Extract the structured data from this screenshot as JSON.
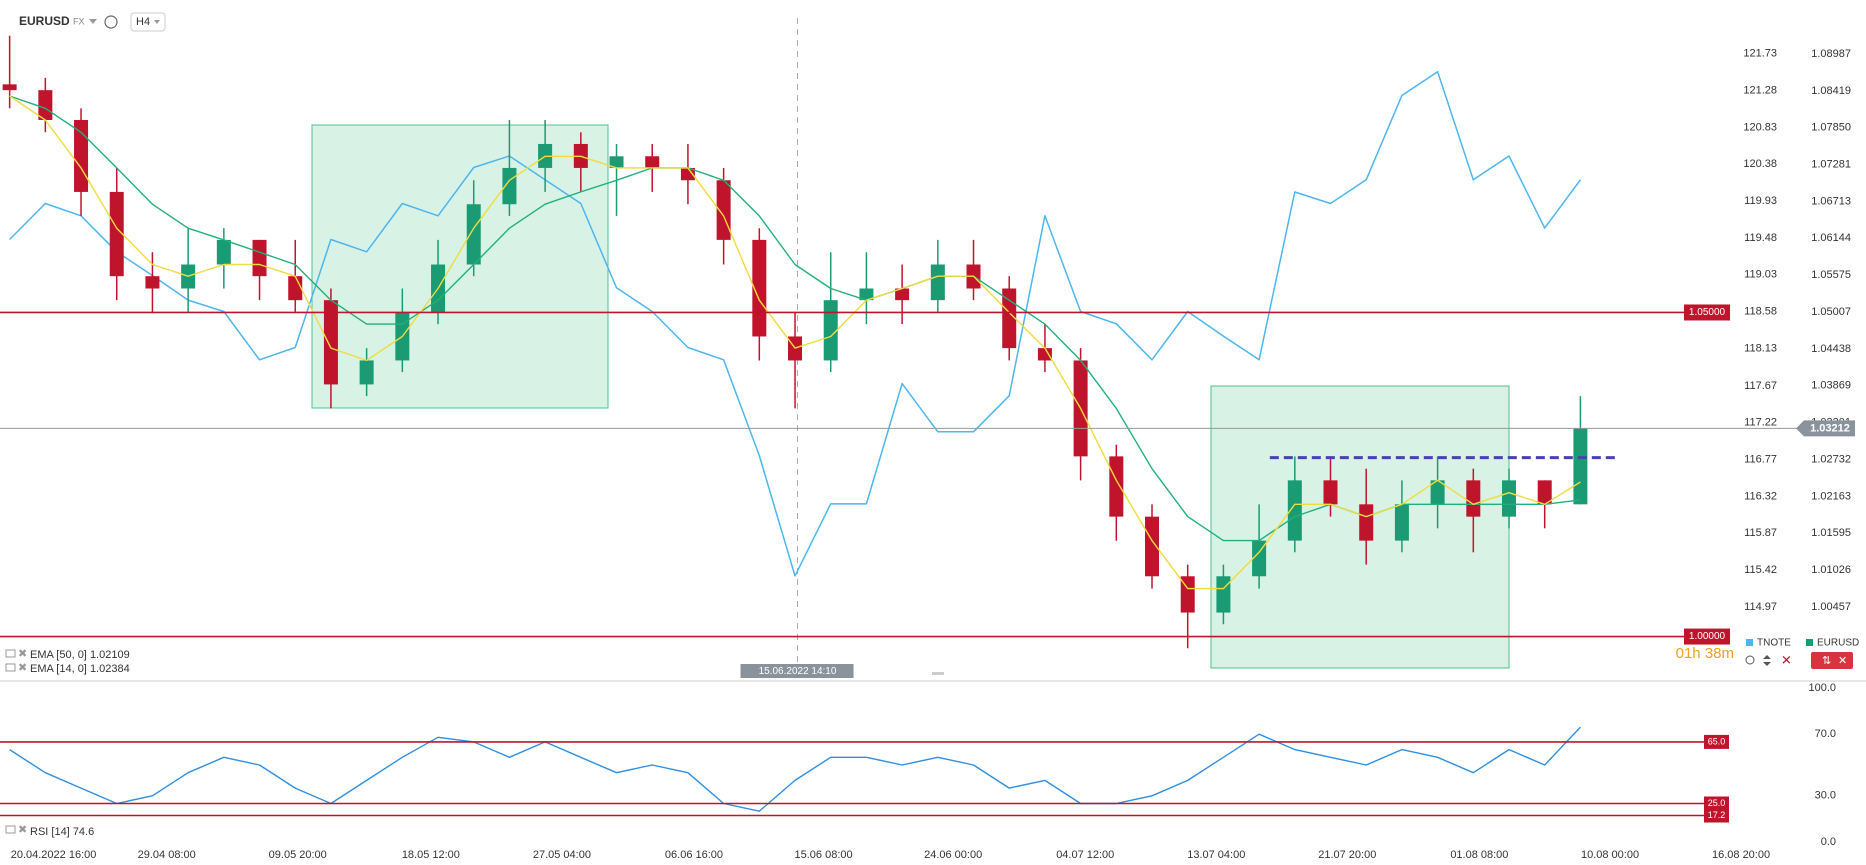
{
  "header": {
    "symbol": "EURUSD",
    "market": "FX",
    "interval": "H4"
  },
  "chart_data": [
    {
      "type": "candlestick",
      "name": "EURUSD",
      "up_color": "#1b9b73",
      "down_color": "#c0142d",
      "xlim": [
        -0.27,
        52
      ],
      "xticks": [
        {
          "value": 1.23,
          "label": "20.04.2022  16:00"
        },
        {
          "value": 4.4,
          "label": "29.04  08:00"
        },
        {
          "value": 8.07,
          "label": "09.05  20:00"
        },
        {
          "value": 11.8,
          "label": "18.05  12:00"
        },
        {
          "value": 15.47,
          "label": "27.05  04:00"
        },
        {
          "value": 19.17,
          "label": "06.06  16:00"
        },
        {
          "value": 22.8,
          "label": "15.06  08:00"
        },
        {
          "value": 26.43,
          "label": "24.06  00:00"
        },
        {
          "value": 30.13,
          "label": "04.07  12:00"
        },
        {
          "value": 33.8,
          "label": "13.07  04:00"
        },
        {
          "value": 37.47,
          "label": "21.07  20:00"
        },
        {
          "value": 41.17,
          "label": "01.08  08:00"
        },
        {
          "value": 44.83,
          "label": "10.08  00:00"
        },
        {
          "value": 48.5,
          "label": "16.08  20:00"
        }
      ],
      "ylim": [
        0.99345,
        1.09636
      ],
      "yticks": [
        1.08987,
        1.08419,
        {
          "value": 1.0785,
          "label": "1.07850"
        },
        1.07281,
        1.06713,
        1.06144,
        1.05575,
        1.05007,
        1.04438,
        1.03869,
        1.03301,
        1.02732,
        1.02163,
        1.01595,
        1.01026,
        1.00457
      ],
      "y2lim": [
        114.09,
        122.24
      ],
      "y2ticks": [
        121.73,
        121.28,
        120.83,
        120.38,
        119.93,
        119.48,
        119.03,
        118.58,
        118.13,
        117.67,
        117.22,
        116.77,
        116.32,
        115.87,
        115.42,
        114.97
      ],
      "open": [
        1.0852,
        1.0843,
        1.0797,
        1.0686,
        1.0556,
        1.0537,
        1.0574,
        1.0612,
        1.0556,
        1.0519,
        1.0389,
        1.0426,
        1.05,
        1.0574,
        1.0667,
        1.0723,
        1.076,
        1.0723,
        1.0741,
        1.0723,
        1.0704,
        1.0612,
        1.0463,
        1.0426,
        1.0519,
        1.0537,
        1.0519,
        1.0574,
        1.0537,
        1.0445,
        1.0426,
        1.0278,
        1.0185,
        1.0093,
        1.0037,
        1.0093,
        1.0148,
        1.0241,
        1.0204,
        1.0148,
        1.0204,
        1.0241,
        1.0185,
        1.0241,
        1.0204
      ],
      "high": [
        1.0927,
        1.0862,
        1.0815,
        1.0723,
        1.0593,
        1.063,
        1.063,
        1.0612,
        1.0612,
        1.0537,
        1.0445,
        1.0537,
        1.0612,
        1.0704,
        1.0797,
        1.0797,
        1.0778,
        1.076,
        1.076,
        1.076,
        1.0723,
        1.063,
        1.05,
        1.0593,
        1.0593,
        1.0574,
        1.0612,
        1.0612,
        1.0556,
        1.0482,
        1.0445,
        1.0296,
        1.0204,
        1.0111,
        1.0111,
        1.0204,
        1.0278,
        1.0278,
        1.0259,
        1.0241,
        1.0278,
        1.0259,
        1.0259,
        1.0241,
        1.0371
      ],
      "low": [
        1.0815,
        1.0778,
        1.0649,
        1.0519,
        1.05,
        1.05,
        1.0537,
        1.0519,
        1.05,
        1.0352,
        1.0371,
        1.0408,
        1.0482,
        1.0556,
        1.0649,
        1.0686,
        1.0686,
        1.0649,
        1.0686,
        1.0667,
        1.0574,
        1.0426,
        1.0352,
        1.0408,
        1.0482,
        1.0482,
        1.05,
        1.0519,
        1.0426,
        1.0408,
        1.0241,
        1.0148,
        1.0074,
        0.9982,
        1.0019,
        1.0074,
        1.013,
        1.0185,
        1.0111,
        1.013,
        1.0167,
        1.013,
        1.0167,
        1.0167,
        1.0204
      ],
      "close": [
        1.0843,
        1.0797,
        1.0686,
        1.0556,
        1.0537,
        1.0574,
        1.0612,
        1.0556,
        1.0519,
        1.0389,
        1.0426,
        1.05,
        1.0574,
        1.0667,
        1.0723,
        1.076,
        1.0723,
        1.0741,
        1.0723,
        1.0704,
        1.0612,
        1.0463,
        1.0426,
        1.0519,
        1.0537,
        1.0519,
        1.0574,
        1.0537,
        1.0445,
        1.0426,
        1.0278,
        1.0185,
        1.0093,
        1.0037,
        1.0093,
        1.0148,
        1.0241,
        1.0204,
        1.0148,
        1.0204,
        1.0241,
        1.0185,
        1.0241,
        1.0204,
        1.03212
      ],
      "series": [
        {
          "name": "TNOTE",
          "color": "#4cb6ee",
          "axis": "y2",
          "values": [
            119.46,
            119.9,
            119.75,
            119.31,
            119.02,
            118.72,
            118.58,
            117.99,
            118.14,
            119.46,
            119.31,
            119.9,
            119.75,
            120.34,
            120.48,
            120.19,
            119.9,
            118.87,
            118.58,
            118.14,
            117.99,
            116.82,
            115.35,
            116.23,
            116.23,
            117.7,
            117.11,
            117.11,
            117.55,
            119.75,
            118.58,
            118.43,
            117.99,
            118.58,
            118.28,
            117.99,
            120.04,
            119.9,
            120.19,
            121.22,
            121.51,
            120.19,
            120.48,
            119.6,
            120.19
          ]
        },
        {
          "name": "EMA [50, 0]",
          "color": "#21b07a",
          "values": [
            1.0834,
            1.0815,
            1.0778,
            1.0723,
            1.0667,
            1.063,
            1.0612,
            1.0593,
            1.0574,
            1.0519,
            1.0482,
            1.0482,
            1.0519,
            1.0574,
            1.063,
            1.0667,
            1.0686,
            1.0704,
            1.0723,
            1.0723,
            1.0704,
            1.0649,
            1.0574,
            1.0537,
            1.0519,
            1.0537,
            1.0556,
            1.0556,
            1.0519,
            1.0482,
            1.0426,
            1.0352,
            1.0259,
            1.0185,
            1.0148,
            1.0148,
            1.0185,
            1.0204,
            1.0185,
            1.0204,
            1.0204,
            1.0204,
            1.0204,
            1.0204,
            1.02109
          ]
        },
        {
          "name": "EMA [14, 0]",
          "color": "#f0dc3c",
          "values": [
            1.0834,
            1.0797,
            1.0723,
            1.063,
            1.0574,
            1.0556,
            1.0574,
            1.0574,
            1.0556,
            1.0445,
            1.0426,
            1.0463,
            1.0537,
            1.063,
            1.0704,
            1.0741,
            1.0741,
            1.0723,
            1.0723,
            1.0723,
            1.0649,
            1.0519,
            1.0445,
            1.0463,
            1.0519,
            1.0537,
            1.0556,
            1.0556,
            1.05,
            1.0445,
            1.0352,
            1.0241,
            1.0148,
            1.0074,
            1.0074,
            1.013,
            1.0204,
            1.0204,
            1.0185,
            1.0204,
            1.0241,
            1.0204,
            1.0222,
            1.0204,
            1.02384
          ]
        }
      ],
      "levels": [
        {
          "value": 1.05,
          "label": "1.05000",
          "color": "#c0142d"
        },
        {
          "value": 1.0,
          "label": "1.00000",
          "color": "#c0142d"
        }
      ],
      "current_price": {
        "value": 1.03212,
        "label": "1.03212"
      },
      "resistance": {
        "value": 1.0276,
        "x": [
          35.3,
          45.1
        ],
        "color": "#4a3fb5"
      },
      "crosshair": {
        "x": 22.07,
        "label": "15.06.2022 14:10"
      },
      "countdown": "01h 38m"
    },
    {
      "type": "line",
      "ylim": [
        0,
        100
      ],
      "yticks": [
        {
          "value": 100,
          "label": "100.0"
        },
        {
          "value": 70,
          "label": "70.0"
        },
        {
          "value": 30,
          "label": "30.0"
        },
        {
          "value": 0,
          "label": "0.0"
        }
      ],
      "series": [
        {
          "name": "RSI [14]",
          "color": "#2f8fe0",
          "values": [
            60,
            45,
            35,
            25,
            30,
            45,
            55,
            50,
            35,
            25,
            40,
            55,
            68,
            65,
            55,
            65,
            55,
            45,
            50,
            45,
            25,
            20,
            40,
            55,
            55,
            50,
            55,
            50,
            35,
            40,
            25,
            25,
            30,
            40,
            55,
            70,
            60,
            55,
            50,
            60,
            55,
            45,
            60,
            50,
            74.6
          ]
        }
      ],
      "levels": [
        {
          "value": 65,
          "label": "65.0",
          "color": "#c0142d"
        },
        {
          "value": 25,
          "label": "25.0",
          "color": "#c0142d"
        },
        {
          "value": 17.2,
          "label": "17.2",
          "color": "#c0142d"
        }
      ]
    }
  ]
}
